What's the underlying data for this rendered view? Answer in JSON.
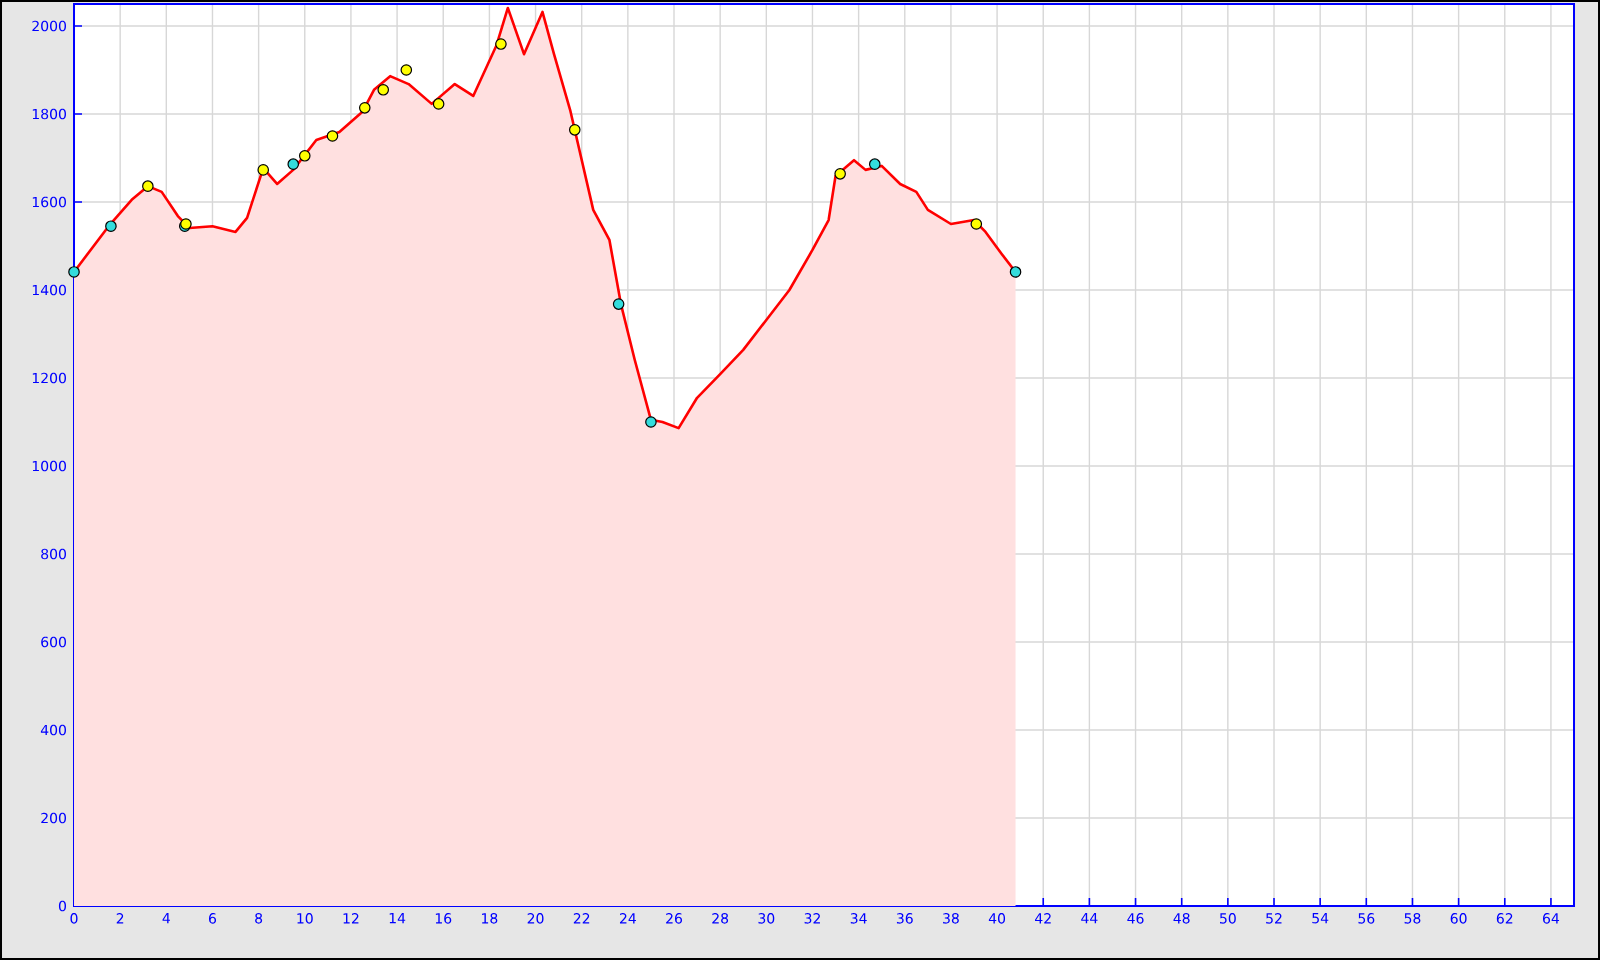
{
  "chart_data": {
    "type": "area",
    "xlim": [
      0,
      65
    ],
    "ylim": [
      0,
      2050
    ],
    "xticks": [
      0,
      2,
      4,
      6,
      8,
      10,
      12,
      14,
      16,
      18,
      20,
      22,
      24,
      26,
      28,
      30,
      32,
      34,
      36,
      38,
      40,
      42,
      44,
      46,
      48,
      50,
      52,
      54,
      56,
      58,
      60,
      62,
      64
    ],
    "yticks": [
      0,
      200,
      400,
      600,
      800,
      1000,
      1200,
      1400,
      1600,
      1800,
      2000
    ],
    "grid": true,
    "series": [
      {
        "color": "#ff0000",
        "marker": "none",
        "x": [
          0,
          1.5,
          2.5,
          3.2,
          3.8,
          4.5,
          5,
          6,
          7,
          7.5,
          8.2,
          8.8,
          9.5,
          10.5,
          11.5,
          12.5,
          13,
          13.7,
          14.5,
          15.5,
          16.5,
          17.3,
          18.3,
          18.8,
          19.5,
          20.3,
          20.8,
          21.5,
          22.5,
          23.2,
          23.7,
          24.3,
          25,
          25.5,
          26.2,
          27,
          28,
          29,
          30,
          31,
          32,
          32.7,
          33,
          33.8,
          34.3,
          35,
          35.8,
          36.5,
          37,
          38,
          39,
          39.5,
          40.2,
          40.8
        ],
        "values": [
          1441,
          1545,
          1605,
          1636,
          1623,
          1568,
          1541,
          1545,
          1532,
          1564,
          1677,
          1641,
          1673,
          1741,
          1759,
          1805,
          1855,
          1886,
          1868,
          1823,
          1868,
          1841,
          1955,
          2041,
          1936,
          2032,
          1936,
          1809,
          1582,
          1514,
          1368,
          1241,
          1105,
          1100,
          1086,
          1155,
          1209,
          1264,
          1332,
          1400,
          1491,
          1559,
          1659,
          1695,
          1673,
          1682,
          1641,
          1623,
          1582,
          1550,
          1559,
          1532,
          1482,
          1441
        ]
      },
      {
        "type": "scatter",
        "color": "#33dddd",
        "marker": "circle",
        "x": [
          0,
          1.6,
          4.8,
          9.5,
          23.6,
          25.0,
          34.7,
          40.8
        ],
        "values": [
          1441,
          1545,
          1545,
          1686,
          1368,
          1100,
          1686,
          1441
        ]
      },
      {
        "type": "scatter",
        "color": "#ffff00",
        "marker": "circle",
        "x": [
          3.2,
          4.85,
          8.2,
          10.0,
          11.2,
          12.6,
          13.4,
          14.4,
          15.8,
          18.5,
          21.7,
          33.2,
          39.1
        ],
        "values": [
          1636,
          1550,
          1673,
          1705,
          1750,
          1814,
          1855,
          1900,
          1823,
          1959,
          1764,
          1664,
          1550
        ]
      }
    ]
  }
}
